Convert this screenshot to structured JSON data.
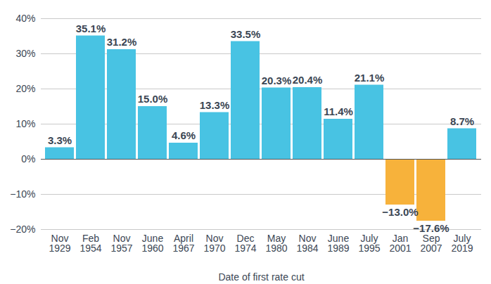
{
  "chart_data": {
    "type": "bar",
    "x_label": "Date of first rate cut",
    "categories": [
      "Nov 1929",
      "Feb 1954",
      "Nov 1957",
      "June 1960",
      "April 1967",
      "Nov 1970",
      "Dec 1974",
      "May 1980",
      "Nov 1984",
      "June 1989",
      "July 1995",
      "Jan 2001",
      "Sep 2007",
      "July 2019"
    ],
    "values": [
      3.3,
      35.1,
      31.2,
      15.0,
      4.6,
      13.3,
      33.5,
      20.3,
      20.4,
      11.4,
      21.1,
      -13.0,
      -17.6,
      8.7
    ],
    "value_labels": [
      "3.3%",
      "35.1%",
      "31.2%",
      "15.0%",
      "4.6%",
      "13.3%",
      "33.5%",
      "20.3%",
      "20.4%",
      "11.4%",
      "21.1%",
      "−13.0%",
      "−17.6%",
      "8.7%"
    ],
    "colors": [
      "#48c3e3",
      "#48c3e3",
      "#48c3e3",
      "#48c3e3",
      "#48c3e3",
      "#48c3e3",
      "#48c3e3",
      "#48c3e3",
      "#48c3e3",
      "#48c3e3",
      "#48c3e3",
      "#f7b23b",
      "#f7b23b",
      "#48c3e3"
    ],
    "ylim": [
      -20,
      40
    ],
    "yticks": [
      {
        "value": -20,
        "label": "−20%"
      },
      {
        "value": -10,
        "label": "−10%"
      },
      {
        "value": 0,
        "label": "0%"
      },
      {
        "value": 10,
        "label": "10%"
      },
      {
        "value": 20,
        "label": "20%"
      },
      {
        "value": 30,
        "label": "30%"
      },
      {
        "value": 40,
        "label": "40%"
      }
    ],
    "grid": true,
    "data_labels": true
  }
}
